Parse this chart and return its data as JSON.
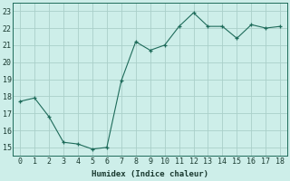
{
  "x_data": [
    0,
    1,
    2,
    3,
    4,
    5,
    6,
    7,
    8,
    9,
    10,
    11,
    12,
    13,
    14,
    15,
    16,
    17,
    18
  ],
  "y_data": [
    17.7,
    17.9,
    16.8,
    15.3,
    15.2,
    14.9,
    15.0,
    18.9,
    21.2,
    20.7,
    21.0,
    22.1,
    22.9,
    22.1,
    22.1,
    21.4,
    22.2,
    22.0,
    22.1
  ],
  "line_color": "#1e6b5a",
  "marker_color": "#1e6b5a",
  "bg_color": "#cdeee9",
  "grid_color": "#aacfc9",
  "xlabel": "Humidex (Indice chaleur)",
  "xlim": [
    -0.5,
    18.5
  ],
  "ylim": [
    14.5,
    23.5
  ],
  "yticks": [
    15,
    16,
    17,
    18,
    19,
    20,
    21,
    22,
    23
  ],
  "xticks": [
    0,
    1,
    2,
    3,
    4,
    5,
    6,
    7,
    8,
    9,
    10,
    11,
    12,
    13,
    14,
    15,
    16,
    17,
    18
  ]
}
